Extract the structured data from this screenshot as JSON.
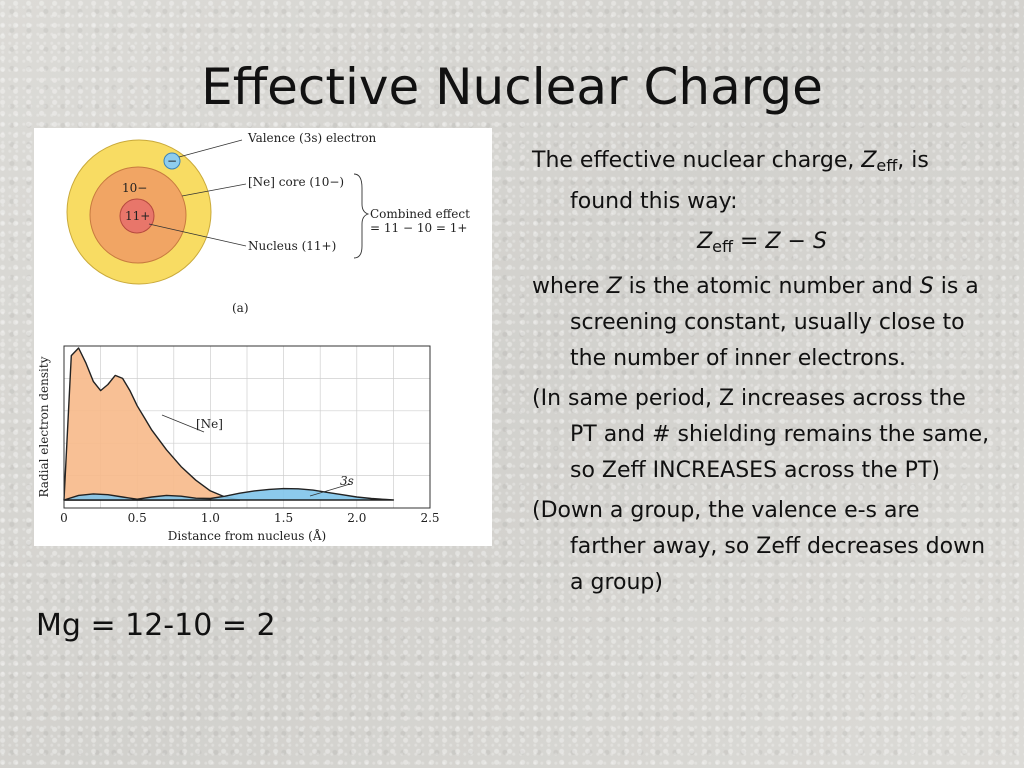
{
  "slide": {
    "title": "Effective Nuclear Charge",
    "mg_equation": "Mg = 12-10 = 2"
  },
  "figure": {
    "atom_labels": {
      "valence": "Valence (3s) electron",
      "core": "[Ne] core (10−)",
      "combined_line1": "Combined effect",
      "combined_line2": "= 11 − 10 = 1+",
      "nucleus": "Nucleus (11+)",
      "core_charge": "10−",
      "nucleus_charge": "11+",
      "electron_sign": "−",
      "panel_label": "(a)"
    },
    "colors": {
      "valence_shell": "#f8dc63",
      "core_shell": "#f1a564",
      "nucleus": "#e8766a",
      "electron": "#8fcdee",
      "ne_curve_fill": "#f7b98a",
      "s3_curve_fill": "#7fc4ea"
    }
  },
  "chart_data": {
    "type": "area",
    "xlabel": "Distance from nucleus (Å)",
    "ylabel": "Radial electron density",
    "xlim": [
      0,
      2.5
    ],
    "xticks": [
      "0",
      "0.5",
      "1.0",
      "1.5",
      "2.0",
      "2.5"
    ],
    "grid": true,
    "series": [
      {
        "name": "[Ne]",
        "x": [
          0,
          0.05,
          0.1,
          0.15,
          0.2,
          0.25,
          0.3,
          0.35,
          0.4,
          0.45,
          0.5,
          0.55,
          0.6,
          0.7,
          0.8,
          0.9,
          1.0,
          1.1,
          1.2
        ],
        "y": [
          0,
          0.95,
          1.0,
          0.9,
          0.78,
          0.72,
          0.76,
          0.82,
          0.8,
          0.72,
          0.62,
          0.54,
          0.46,
          0.33,
          0.22,
          0.13,
          0.06,
          0.02,
          0
        ]
      },
      {
        "name": "3s",
        "x": [
          0,
          0.1,
          0.2,
          0.3,
          0.4,
          0.5,
          0.6,
          0.7,
          0.8,
          0.9,
          1.0,
          1.1,
          1.2,
          1.3,
          1.4,
          1.5,
          1.6,
          1.7,
          1.8,
          1.9,
          2.0,
          2.1,
          2.2,
          2.25
        ],
        "y": [
          0,
          0.03,
          0.04,
          0.035,
          0.02,
          0.005,
          0.02,
          0.03,
          0.025,
          0.012,
          0.01,
          0.025,
          0.045,
          0.06,
          0.07,
          0.075,
          0.074,
          0.065,
          0.05,
          0.035,
          0.02,
          0.01,
          0.003,
          0
        ]
      }
    ]
  },
  "text": {
    "p1_a": "The effective nuclear charge, ",
    "p1_z": "Z",
    "p1_sub": "eff",
    "p1_b": ", is found this way:",
    "f_z": "Z",
    "f_sub": "eff",
    "f_eq": " = ",
    "f_z2": "Z",
    "f_minus": " − ",
    "f_s": "S",
    "p2_a": "where ",
    "p2_z": "Z",
    "p2_b": " is the atomic number and ",
    "p2_s": "S",
    "p2_c": " is a screening constant, usually close to the number of inner electrons.",
    "p3": "(In same period, Z increases across the PT and # shielding remains the same, so Zeff INCREASES across the PT)",
    "p4": "(Down a group, the valence e-s are farther away, so Zeff decreases down a group)"
  }
}
